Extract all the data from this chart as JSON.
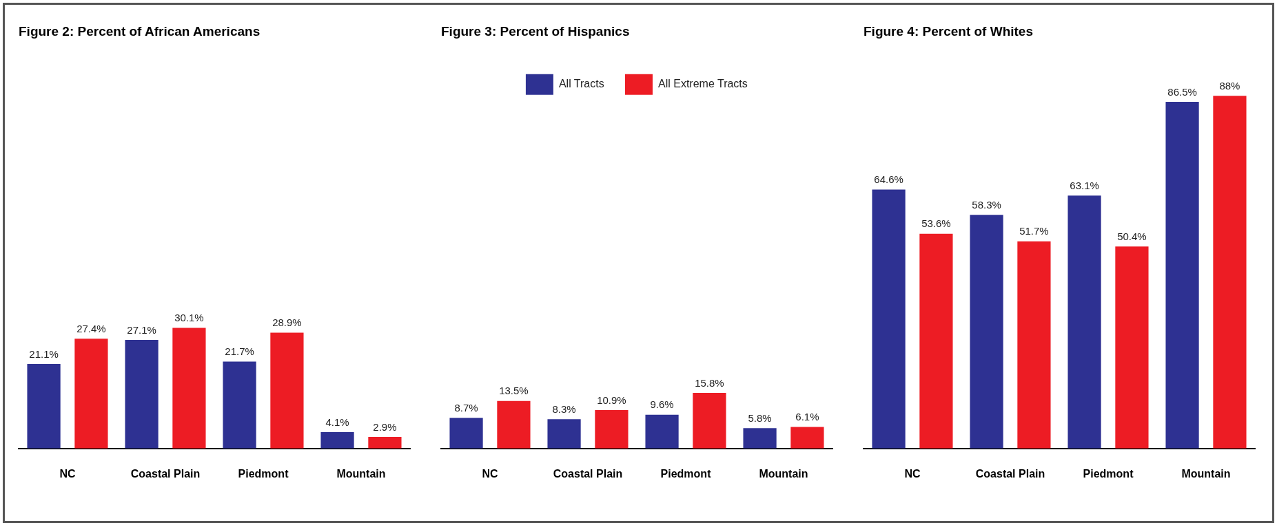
{
  "chart_data": [
    {
      "type": "bar",
      "title": "Figure 2: Percent of African Americans",
      "categories": [
        "NC",
        "Coastal Plain",
        "Piedmont",
        "Mountain"
      ],
      "series": [
        {
          "color": "#2e3192",
          "values": [
            21.1,
            27.1,
            21.7,
            4.1
          ],
          "value_labels": [
            "21.1%",
            "27.1%",
            "21.7%",
            "4.1%"
          ]
        },
        {
          "color": "#ed1c24",
          "values": [
            27.4,
            30.1,
            28.9,
            2.9
          ],
          "value_labels": [
            "27.4%",
            "30.1%",
            "28.9%",
            "2.9%"
          ]
        }
      ],
      "tick_labels": "x",
      "grid": false,
      "legend": false
    },
    {
      "type": "bar",
      "title": "Figure 3: Percent of Hispanics",
      "categories": [
        "NC",
        "Coastal Plain",
        "Piedmont",
        "Mountain"
      ],
      "series": [
        {
          "name": "All Tracts",
          "color": "#2e3192",
          "values": [
            8.7,
            8.3,
            9.6,
            5.8
          ],
          "value_labels": [
            "8.7%",
            "8.3%",
            "9.6%",
            "5.8%"
          ]
        },
        {
          "name": "All Extreme Tracts",
          "color": "#ed1c24",
          "values": [
            13.5,
            10.9,
            15.8,
            6.1
          ],
          "value_labels": [
            "13.5%",
            "10.9%",
            "15.8%",
            "6.1%"
          ]
        }
      ],
      "tick_labels": "x",
      "grid": false,
      "legend": "top"
    },
    {
      "type": "bar",
      "title": "Figure 4: Percent of Whites",
      "categories": [
        "NC",
        "Coastal Plain",
        "Piedmont",
        "Mountain"
      ],
      "series": [
        {
          "color": "#2e3192",
          "values": [
            64.6,
            58.3,
            63.1,
            86.5
          ],
          "value_labels": [
            "64.6%",
            "58.3%",
            "63.1%",
            "86.5%"
          ]
        },
        {
          "color": "#ed1c24",
          "values": [
            53.6,
            51.7,
            50.4,
            88
          ],
          "value_labels": [
            "53.6%",
            "51.7%",
            "50.4%",
            "88%"
          ]
        }
      ],
      "tick_labels": "x",
      "grid": false,
      "legend": false
    }
  ]
}
